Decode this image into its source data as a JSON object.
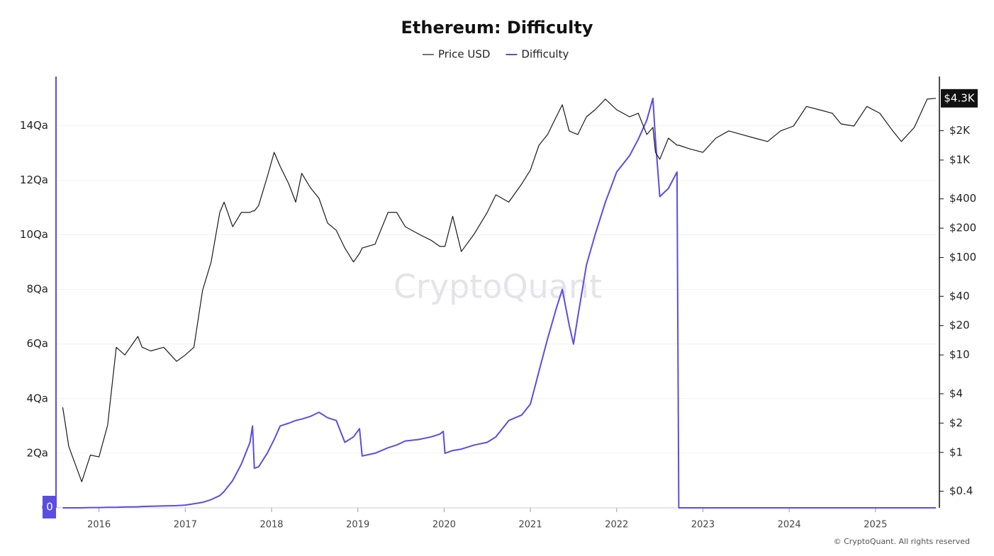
{
  "chart_data": {
    "type": "line",
    "title": "Ethereum: Difficulty",
    "watermark": "CryptoQuant",
    "source": "© CryptoQuant. All rights reserved",
    "x": [
      2015.58,
      2015.65,
      2015.8,
      2015.9,
      2016.0,
      2016.1,
      2016.2,
      2016.3,
      2016.45,
      2016.5,
      2016.6,
      2016.75,
      2016.9,
      2017.0,
      2017.1,
      2017.2,
      2017.3,
      2017.4,
      2017.45,
      2017.55,
      2017.65,
      2017.75,
      2017.78,
      2017.8,
      2017.85,
      2017.95,
      2018.03,
      2018.1,
      2018.2,
      2018.28,
      2018.35,
      2018.45,
      2018.55,
      2018.65,
      2018.75,
      2018.85,
      2018.95,
      2019.02,
      2019.05,
      2019.2,
      2019.35,
      2019.45,
      2019.55,
      2019.7,
      2019.85,
      2019.95,
      2019.99,
      2020.01,
      2020.1,
      2020.2,
      2020.35,
      2020.5,
      2020.6,
      2020.75,
      2020.9,
      2021.0,
      2021.1,
      2021.2,
      2021.3,
      2021.37,
      2021.45,
      2021.5,
      2021.55,
      2021.65,
      2021.75,
      2021.87,
      2022.0,
      2022.15,
      2022.25,
      2022.35,
      2022.42,
      2022.45,
      2022.5,
      2022.6,
      2022.7,
      2022.72,
      2022.85,
      2023.0,
      2023.15,
      2023.3,
      2023.45,
      2023.6,
      2023.75,
      2023.9,
      2024.05,
      2024.2,
      2024.35,
      2024.5,
      2024.6,
      2024.75,
      2024.9,
      2025.05,
      2025.2,
      2025.3,
      2025.45,
      2025.6,
      2025.7
    ],
    "series": [
      {
        "name": "Price USD",
        "color": "#1a1a1a",
        "axis": "y2",
        "values": [
          2.9,
          1.15,
          0.5,
          0.94,
          0.9,
          1.9,
          12,
          10,
          15.5,
          12,
          11,
          12,
          8.6,
          10,
          12,
          46,
          90,
          290,
          370,
          207,
          290,
          290,
          300,
          300,
          340,
          670,
          1200,
          860,
          570,
          370,
          730,
          520,
          405,
          225,
          190,
          125,
          90,
          110,
          125,
          137,
          290,
          290,
          207,
          175,
          150,
          130,
          130,
          130,
          265,
          115,
          175,
          290,
          440,
          370,
          570,
          790,
          1420,
          1830,
          2780,
          3690,
          1990,
          1900,
          1830,
          2780,
          3280,
          4220,
          3280,
          2780,
          3020,
          1830,
          2160,
          1200,
          1020,
          1680,
          1420,
          1420,
          1300,
          1200,
          1680,
          1990,
          1830,
          1680,
          1550,
          1990,
          2230,
          3550,
          3280,
          3020,
          2350,
          2230,
          3550,
          3020,
          1990,
          1550,
          2160,
          4220,
          4300
        ]
      },
      {
        "name": "Difficulty",
        "color": "#5b4de0",
        "values": [
          0,
          0,
          0,
          0.01,
          0.01,
          0.02,
          0.02,
          0.03,
          0.04,
          0.05,
          0.06,
          0.07,
          0.08,
          0.1,
          0.15,
          0.2,
          0.3,
          0.45,
          0.6,
          1.0,
          1.6,
          2.4,
          3.0,
          1.45,
          1.5,
          2.0,
          2.5,
          3.0,
          3.1,
          3.2,
          3.25,
          3.35,
          3.5,
          3.3,
          3.2,
          2.4,
          2.6,
          2.9,
          1.9,
          2.0,
          2.2,
          2.3,
          2.45,
          2.5,
          2.6,
          2.7,
          2.8,
          2.0,
          2.1,
          2.15,
          2.3,
          2.4,
          2.6,
          3.2,
          3.4,
          3.8,
          5.0,
          6.2,
          7.3,
          8.0,
          6.7,
          6.0,
          7.0,
          8.9,
          10.0,
          11.2,
          12.3,
          12.9,
          13.5,
          14.2,
          15.0,
          13.5,
          11.4,
          11.7,
          12.3,
          0,
          0,
          0,
          0,
          0,
          0,
          0,
          0,
          0,
          0,
          0,
          0,
          0,
          0,
          0,
          0,
          0,
          0,
          0,
          0,
          0,
          0
        ]
      }
    ],
    "xlim": [
      2015.51,
      2025.7
    ],
    "xticks": [
      2016,
      2017,
      2018,
      2019,
      2020,
      2021,
      2022,
      2023,
      2024,
      2025
    ],
    "ylim": [
      0,
      15.8
    ],
    "yticks": [
      0,
      {
        "value": 2,
        "label": "2Qa"
      },
      {
        "value": 4,
        "label": "4Qa"
      },
      {
        "value": 6,
        "label": "6Qa"
      },
      {
        "value": 8,
        "label": "8Qa"
      },
      {
        "value": 10,
        "label": "10Qa"
      },
      {
        "value": 12,
        "label": "12Qa"
      },
      {
        "value": 14,
        "label": "14Qa"
      }
    ],
    "y2lim": [
      0.27,
      7200
    ],
    "y2log": true,
    "y2ticks": [
      {
        "value": 0.4,
        "label": "$0.4"
      },
      {
        "value": 1,
        "label": "$1"
      },
      {
        "value": 2,
        "label": "$2"
      },
      {
        "value": 4,
        "label": "$4"
      },
      {
        "value": 10,
        "label": "$10"
      },
      {
        "value": 20,
        "label": "$20"
      },
      {
        "value": 40,
        "label": "$40"
      },
      {
        "value": 100,
        "label": "$100"
      },
      {
        "value": 200,
        "label": "$200"
      },
      {
        "value": 400,
        "label": "$400"
      },
      {
        "value": 1000,
        "label": "$1K"
      },
      {
        "value": 2000,
        "label": "$2K"
      }
    ],
    "grid": true,
    "annotations": [
      {
        "text": "$4.3K",
        "y": 4300,
        "axis": "y2"
      },
      {
        "text": "0",
        "y": 0,
        "axis": "y"
      }
    ]
  }
}
